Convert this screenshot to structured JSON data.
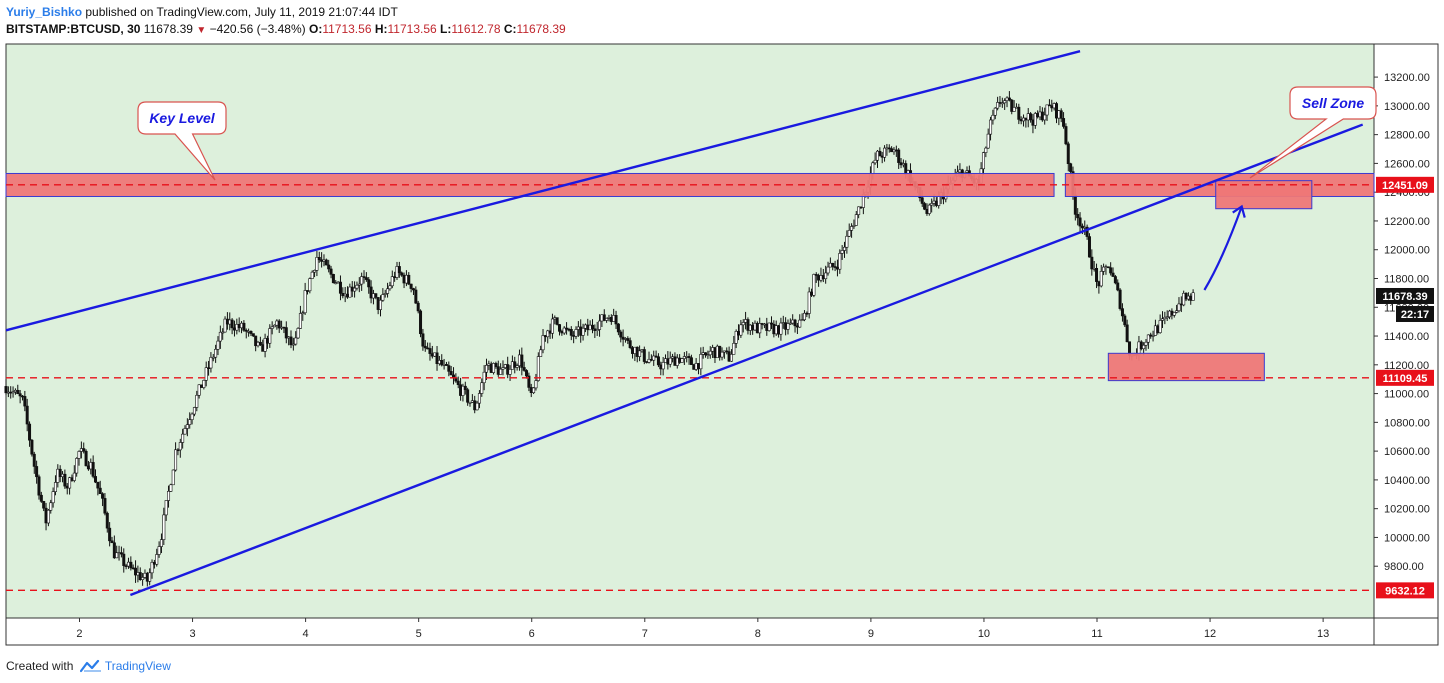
{
  "header": {
    "author": "Yuriy_Bishko",
    "published": "published on TradingView.com, July 11, 2019 21:07:44 IDT",
    "symbol": "BITSTAMP:BTCUSD, 30",
    "last": "11678.39",
    "change": "−420.56 (−3.48%)",
    "o_label": "O:",
    "o_value": "11713.56",
    "h_label": "H:",
    "h_value": "11713.56",
    "l_label": "L:",
    "l_value": "11612.78",
    "c_label": "C:",
    "c_value": "11678.39"
  },
  "footer": {
    "created_with": "Created with",
    "brand": "TradingView"
  },
  "colors": {
    "background": "#ddf0dc",
    "candle": "#111111",
    "trendline": "#1a1ae0",
    "zone_fill": "#ee7777",
    "level_dash": "#e8101a",
    "price_label_bg": "#e8101a",
    "last_label_bg": "#111111"
  },
  "chart_data": {
    "type": "candlestick",
    "xlabel": "",
    "ylabel": "",
    "x_ticks": [
      "2",
      "3",
      "4",
      "5",
      "6",
      "7",
      "8",
      "9",
      "10",
      "11",
      "12",
      "13"
    ],
    "y_ticks": [
      "9800.00",
      "10000.00",
      "10200.00",
      "10400.00",
      "10600.00",
      "10800.00",
      "11000.00",
      "11200.00",
      "11400.00",
      "11600.00",
      "11800.00",
      "12000.00",
      "12200.00",
      "12400.00",
      "12600.00",
      "12800.00",
      "13000.00",
      "13200.00"
    ],
    "ylim": [
      9440,
      13430
    ],
    "xlim": [
      1.35,
      13.45
    ],
    "price_path": [
      [
        1.35,
        11050
      ],
      [
        1.5,
        10950
      ],
      [
        1.6,
        10500
      ],
      [
        1.7,
        10100
      ],
      [
        1.8,
        10450
      ],
      [
        1.9,
        10350
      ],
      [
        2.0,
        10600
      ],
      [
        2.1,
        10500
      ],
      [
        2.2,
        10250
      ],
      [
        2.3,
        9900
      ],
      [
        2.45,
        9780
      ],
      [
        2.6,
        9700
      ],
      [
        2.72,
        10000
      ],
      [
        2.85,
        10600
      ],
      [
        3.0,
        10900
      ],
      [
        3.15,
        11200
      ],
      [
        3.3,
        11500
      ],
      [
        3.45,
        11450
      ],
      [
        3.6,
        11300
      ],
      [
        3.75,
        11500
      ],
      [
        3.9,
        11300
      ],
      [
        4.0,
        11700
      ],
      [
        4.1,
        11950
      ],
      [
        4.2,
        11850
      ],
      [
        4.35,
        11700
      ],
      [
        4.5,
        11800
      ],
      [
        4.65,
        11600
      ],
      [
        4.8,
        11850
      ],
      [
        4.95,
        11750
      ],
      [
        5.05,
        11300
      ],
      [
        5.2,
        11200
      ],
      [
        5.35,
        11050
      ],
      [
        5.5,
        10900
      ],
      [
        5.6,
        11200
      ],
      [
        5.75,
        11150
      ],
      [
        5.9,
        11250
      ],
      [
        6.0,
        10950
      ],
      [
        6.1,
        11400
      ],
      [
        6.2,
        11500
      ],
      [
        6.35,
        11400
      ],
      [
        6.5,
        11450
      ],
      [
        6.7,
        11550
      ],
      [
        6.85,
        11350
      ],
      [
        7.0,
        11250
      ],
      [
        7.15,
        11200
      ],
      [
        7.3,
        11250
      ],
      [
        7.45,
        11200
      ],
      [
        7.6,
        11300
      ],
      [
        7.75,
        11250
      ],
      [
        7.85,
        11500
      ],
      [
        8.0,
        11450
      ],
      [
        8.2,
        11450
      ],
      [
        8.4,
        11500
      ],
      [
        8.5,
        11800
      ],
      [
        8.7,
        11900
      ],
      [
        8.9,
        12300
      ],
      [
        9.05,
        12650
      ],
      [
        9.2,
        12700
      ],
      [
        9.35,
        12500
      ],
      [
        9.5,
        12250
      ],
      [
        9.65,
        12400
      ],
      [
        9.8,
        12550
      ],
      [
        9.95,
        12450
      ],
      [
        10.05,
        12850
      ],
      [
        10.15,
        13050
      ],
      [
        10.3,
        12950
      ],
      [
        10.45,
        12900
      ],
      [
        10.6,
        13000
      ],
      [
        10.7,
        12900
      ],
      [
        10.8,
        12300
      ],
      [
        10.9,
        12100
      ],
      [
        11.0,
        11750
      ],
      [
        11.1,
        11900
      ],
      [
        11.2,
        11650
      ],
      [
        11.3,
        11250
      ],
      [
        11.45,
        11400
      ],
      [
        11.6,
        11500
      ],
      [
        11.75,
        11650
      ],
      [
        11.87,
        11678
      ]
    ],
    "last_price": "11678.39",
    "countdown": "22:17",
    "horizontal_levels": [
      {
        "price": 12451.09,
        "label": "12451.09",
        "style": "dashed"
      },
      {
        "price": 11109.45,
        "label": "11109.45",
        "style": "dashed"
      },
      {
        "price": 9632.12,
        "label": "9632.12",
        "style": "dashed"
      }
    ],
    "trendlines": [
      {
        "from": [
          1.35,
          11440
        ],
        "to": [
          10.85,
          13380
        ]
      },
      {
        "from": [
          2.45,
          9600
        ],
        "to": [
          13.35,
          12870
        ]
      }
    ],
    "zones": [
      {
        "x": [
          1.35,
          10.62
        ],
        "y": [
          12370,
          12530
        ]
      },
      {
        "x": [
          10.72,
          13.45
        ],
        "y": [
          12370,
          12530
        ]
      },
      {
        "x": [
          12.05,
          12.9
        ],
        "y": [
          12285,
          12480
        ]
      },
      {
        "x": [
          11.1,
          12.48
        ],
        "y": [
          11090,
          11280
        ]
      }
    ],
    "annotations": [
      {
        "text": "Key Level"
      },
      {
        "text": "Sell Zone"
      }
    ],
    "arrow": {
      "from": [
        11.95,
        11720
      ],
      "to": [
        12.28,
        12300
      ]
    }
  }
}
